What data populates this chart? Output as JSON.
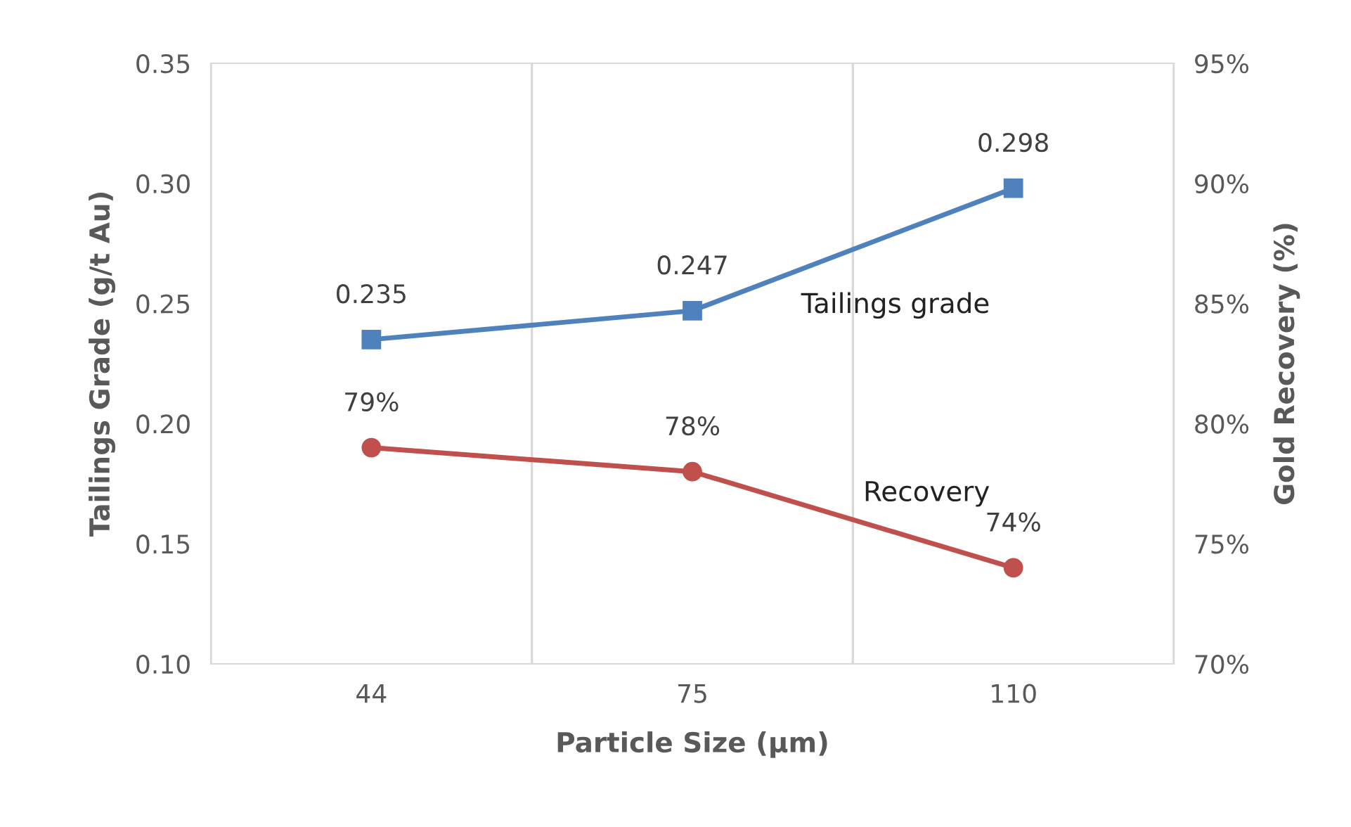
{
  "chart_data": {
    "type": "line",
    "xlabel": "Particle Size (µm)",
    "ylabel": "Tailings Grade (g/t Au)",
    "y2label": "Gold Recovery (%)",
    "categories": [
      "44",
      "75",
      "110"
    ],
    "series": [
      {
        "name": "Tailings grade",
        "color": "#4f81bd",
        "marker": "square",
        "values": [
          0.235,
          0.247,
          0.298
        ],
        "value_labels": [
          "0.235",
          "0.247",
          "0.298"
        ]
      },
      {
        "name": "Recovery",
        "color": "#c0504d",
        "marker": "circle",
        "axis": "y2",
        "values": [
          79,
          78,
          74
        ],
        "value_labels": [
          "79%",
          "78%",
          "74%"
        ]
      }
    ],
    "ylim": [
      0.1,
      0.35
    ],
    "yticks": [
      {
        "value": 0.1,
        "label": "0.10"
      },
      {
        "value": 0.15,
        "label": "0.15"
      },
      {
        "value": 0.2,
        "label": "0.20"
      },
      {
        "value": 0.25,
        "label": "0.25"
      },
      {
        "value": 0.3,
        "label": "0.30"
      },
      {
        "value": 0.35,
        "label": "0.35"
      }
    ],
    "y2lim": [
      70,
      95
    ],
    "y2ticks": [
      {
        "value": 70,
        "label": "70%"
      },
      {
        "value": 75,
        "label": "75%"
      },
      {
        "value": 80,
        "label": "80%"
      },
      {
        "value": 85,
        "label": "85%"
      },
      {
        "value": 90,
        "label": "90%"
      },
      {
        "value": 95,
        "label": "95%"
      }
    ],
    "grid": "x",
    "legend": false
  }
}
